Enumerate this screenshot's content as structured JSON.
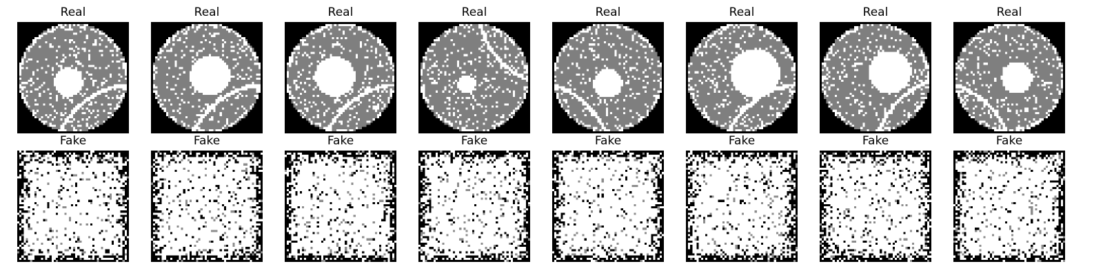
{
  "figure": {
    "rows": [
      {
        "label": "Real",
        "columns": 8
      },
      {
        "label": "Fake",
        "columns": 8
      }
    ],
    "panels": {
      "real": [
        {
          "title": "Real",
          "hole_radius": 0.13,
          "hole_dx": -0.04,
          "hole_dy": 0.04,
          "scratch": "br"
        },
        {
          "title": "Real",
          "hole_radius": 0.18,
          "hole_dx": 0.03,
          "hole_dy": -0.02,
          "scratch": "br"
        },
        {
          "title": "Real",
          "hole_radius": 0.18,
          "hole_dx": -0.05,
          "hole_dy": -0.01,
          "scratch": "br"
        },
        {
          "title": "Real",
          "hole_radius": 0.08,
          "hole_dx": -0.07,
          "hole_dy": 0.06,
          "scratch": "tr"
        },
        {
          "title": "Real",
          "hole_radius": 0.13,
          "hole_dx": 0.0,
          "hole_dy": 0.05,
          "scratch": "bl"
        },
        {
          "title": "Real",
          "hole_radius": 0.22,
          "hole_dx": 0.12,
          "hole_dy": -0.04,
          "scratch": "br"
        },
        {
          "title": "Real",
          "hole_radius": 0.19,
          "hole_dx": 0.13,
          "hole_dy": -0.05,
          "scratch": "br2"
        },
        {
          "title": "Real",
          "hole_radius": 0.14,
          "hole_dx": 0.07,
          "hole_dy": 0.0,
          "scratch": "bl"
        }
      ],
      "fake": [
        {
          "title": "Fake"
        },
        {
          "title": "Fake"
        },
        {
          "title": "Fake"
        },
        {
          "title": "Fake"
        },
        {
          "title": "Fake"
        },
        {
          "title": "Fake"
        },
        {
          "title": "Fake"
        },
        {
          "title": "Fake"
        }
      ]
    },
    "colors": {
      "wafer": "#7f7f7f",
      "defect": "#ffffff",
      "background": "#000000"
    }
  }
}
